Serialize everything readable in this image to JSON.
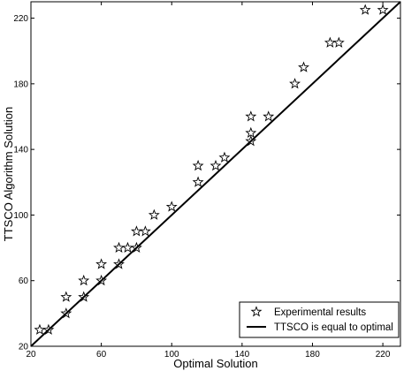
{
  "chart_data": {
    "type": "scatter",
    "title": "",
    "xlabel": "Optimal Solution",
    "ylabel": "TTSCO Algorithm Solution",
    "xlim": [
      20,
      230
    ],
    "ylim": [
      20,
      230
    ],
    "xticks": [
      20,
      60,
      100,
      140,
      180,
      220
    ],
    "yticks": [
      20,
      60,
      100,
      140,
      180,
      220
    ],
    "grid": false,
    "legend_position": "bottom-right",
    "series": [
      {
        "name": "Experimental results",
        "marker": "star",
        "color": "#000000",
        "points": [
          [
            25,
            30
          ],
          [
            30,
            30
          ],
          [
            40,
            40
          ],
          [
            40,
            50
          ],
          [
            50,
            50
          ],
          [
            50,
            60
          ],
          [
            60,
            60
          ],
          [
            60,
            70
          ],
          [
            70,
            70
          ],
          [
            70,
            80
          ],
          [
            75,
            80
          ],
          [
            80,
            80
          ],
          [
            80,
            90
          ],
          [
            85,
            90
          ],
          [
            90,
            100
          ],
          [
            100,
            105
          ],
          [
            115,
            120
          ],
          [
            115,
            130
          ],
          [
            125,
            130
          ],
          [
            130,
            135
          ],
          [
            145,
            145
          ],
          [
            145,
            150
          ],
          [
            145,
            160
          ],
          [
            155,
            160
          ],
          [
            170,
            180
          ],
          [
            175,
            190
          ],
          [
            190,
            205
          ],
          [
            195,
            205
          ],
          [
            210,
            225
          ],
          [
            220,
            225
          ]
        ]
      },
      {
        "name": "TTSCO is equal to optimal",
        "type": "line",
        "color": "#000000",
        "points": [
          [
            20,
            20
          ],
          [
            230,
            230
          ]
        ]
      }
    ]
  }
}
